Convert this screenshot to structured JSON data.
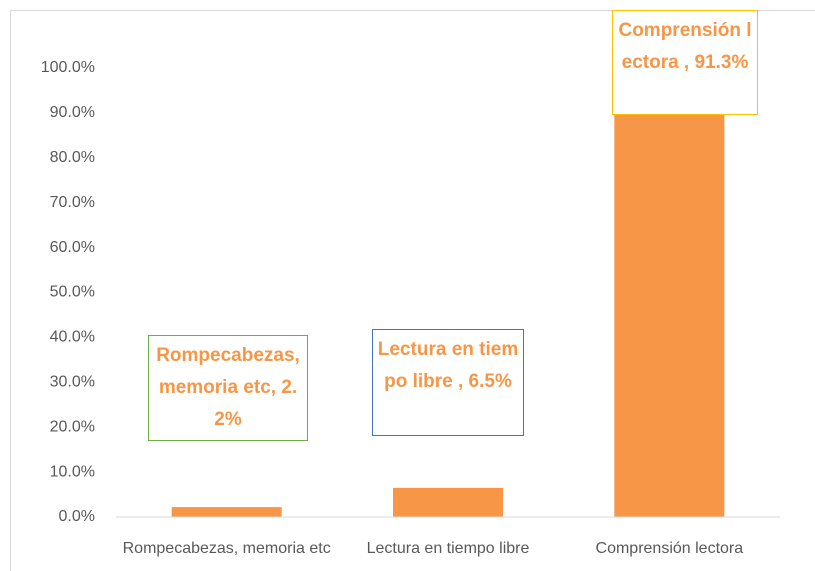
{
  "chart_data": {
    "type": "bar",
    "categories": [
      "Rompecabezas, memoria etc",
      "Lectura en tiempo libre",
      "Comprensión lectora"
    ],
    "values": [
      2.2,
      6.5,
      91.3
    ],
    "value_labels": [
      "Rompecabezas, memoria etc, 2.2%",
      "Lectura en tiempo libre , 6.5%",
      "Comprensión lectora , 91.3%"
    ],
    "color": "#f79646",
    "label_border_colors": [
      "#70ad47",
      "#4472c4",
      "#ffc000"
    ],
    "ylim": [
      0,
      100
    ],
    "yticks": [
      {
        "value": 0,
        "label": "0.0%"
      },
      {
        "value": 10,
        "label": "10.0%"
      },
      {
        "value": 20,
        "label": "20.0%"
      },
      {
        "value": 30,
        "label": "30.0%"
      },
      {
        "value": 40,
        "label": "40.0%"
      },
      {
        "value": 50,
        "label": "50.0%"
      },
      {
        "value": 60,
        "label": "60.0%"
      },
      {
        "value": 70,
        "label": "70.0%"
      },
      {
        "value": 80,
        "label": "80.0%"
      },
      {
        "value": 90,
        "label": "90.0%"
      },
      {
        "value": 100,
        "label": "100.0%"
      }
    ],
    "grid": false
  }
}
